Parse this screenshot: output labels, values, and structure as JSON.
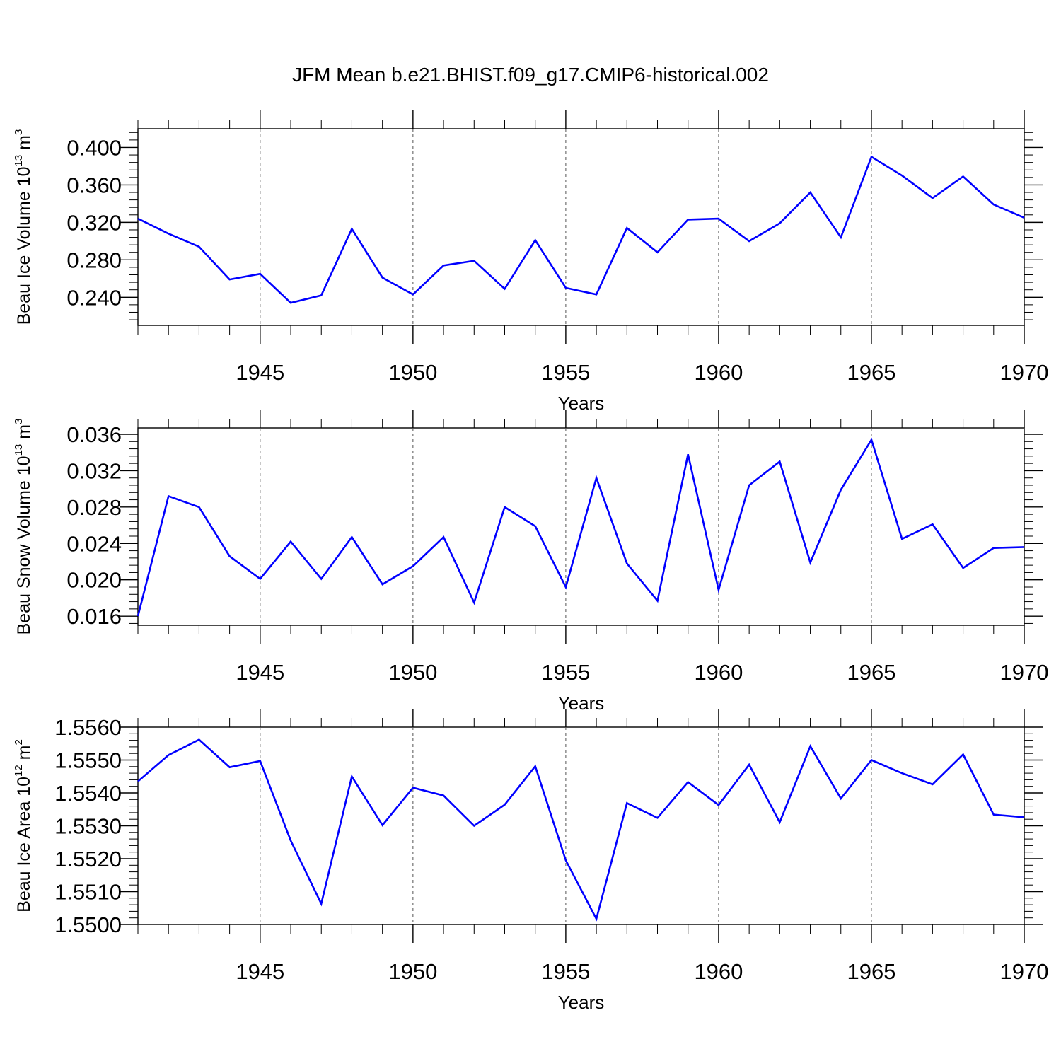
{
  "title": "JFM Mean b.e21.BHIST.f09_g17.CMIP6-historical.002",
  "chart_data": [
    {
      "type": "line",
      "ylabel_parts": [
        "Beau Ice Volume 10",
        "13",
        " m",
        "3"
      ],
      "xlabel": "Years",
      "xlim": [
        1941,
        1970
      ],
      "ylim": [
        0.21,
        0.42
      ],
      "yticks": [
        "0.240",
        "0.280",
        "0.320",
        "0.360",
        "0.400"
      ],
      "xticks": [
        "1945",
        "1950",
        "1955",
        "1960",
        "1965",
        "1970"
      ],
      "line_color": "#0000ff",
      "series": [
        {
          "name": "Beau Ice Volume",
          "x": [
            1941,
            1942,
            1943,
            1944,
            1945,
            1946,
            1947,
            1948,
            1949,
            1950,
            1951,
            1952,
            1953,
            1954,
            1955,
            1956,
            1957,
            1958,
            1959,
            1960,
            1961,
            1962,
            1963,
            1964,
            1965,
            1966,
            1967,
            1968,
            1969,
            1970
          ],
          "values": [
            0.324,
            0.308,
            0.294,
            0.259,
            0.265,
            0.234,
            0.242,
            0.313,
            0.261,
            0.243,
            0.274,
            0.279,
            0.249,
            0.301,
            0.25,
            0.243,
            0.314,
            0.288,
            0.323,
            0.324,
            0.3,
            0.319,
            0.352,
            0.304,
            0.39,
            0.37,
            0.346,
            0.369,
            0.339,
            0.325
          ]
        }
      ]
    },
    {
      "type": "line",
      "ylabel_parts": [
        "Beau Snow Volume 10",
        "13",
        " m",
        "3"
      ],
      "xlabel": "Years",
      "xlim": [
        1941,
        1970
      ],
      "ylim": [
        0.015,
        0.0367
      ],
      "yticks": [
        "0.016",
        "0.020",
        "0.024",
        "0.028",
        "0.032",
        "0.036"
      ],
      "xticks": [
        "1945",
        "1950",
        "1955",
        "1960",
        "1965",
        "1970"
      ],
      "line_color": "#0000ff",
      "series": [
        {
          "name": "Beau Snow Volume",
          "x": [
            1941,
            1942,
            1943,
            1944,
            1945,
            1946,
            1947,
            1948,
            1949,
            1950,
            1951,
            1952,
            1953,
            1954,
            1955,
            1956,
            1957,
            1958,
            1959,
            1960,
            1961,
            1962,
            1963,
            1964,
            1965,
            1966,
            1967,
            1968,
            1969,
            1970
          ],
          "values": [
            0.016,
            0.0292,
            0.028,
            0.0226,
            0.0201,
            0.0242,
            0.0201,
            0.0247,
            0.0195,
            0.0215,
            0.0247,
            0.0175,
            0.028,
            0.0259,
            0.0192,
            0.0312,
            0.0218,
            0.0177,
            0.0338,
            0.0189,
            0.0304,
            0.033,
            0.0219,
            0.0299,
            0.0354,
            0.0245,
            0.0261,
            0.0213,
            0.0235,
            0.0236
          ]
        }
      ]
    },
    {
      "type": "line",
      "ylabel_parts": [
        "Beau Ice Area 10",
        "12",
        " m",
        "2"
      ],
      "xlabel": "Years",
      "xlim": [
        1941,
        1970
      ],
      "ylim": [
        1.55,
        1.556
      ],
      "yticks": [
        "1.5500",
        "1.5510",
        "1.5520",
        "1.5530",
        "1.5540",
        "1.5550",
        "1.5560"
      ],
      "xticks": [
        "1945",
        "1950",
        "1955",
        "1960",
        "1965",
        "1970"
      ],
      "line_color": "#0000ff",
      "series": [
        {
          "name": "Beau Ice Area",
          "x": [
            1941,
            1942,
            1943,
            1944,
            1945,
            1946,
            1947,
            1948,
            1949,
            1950,
            1951,
            1952,
            1953,
            1954,
            1955,
            1956,
            1957,
            1958,
            1959,
            1960,
            1961,
            1962,
            1963,
            1964,
            1965,
            1966,
            1967,
            1968,
            1969,
            1970
          ],
          "values": [
            1.55435,
            1.55515,
            1.55562,
            1.55478,
            1.55497,
            1.55255,
            1.55063,
            1.5545,
            1.55302,
            1.55416,
            1.55392,
            1.553,
            1.55364,
            1.55481,
            1.55195,
            1.55017,
            1.55369,
            1.55324,
            1.55433,
            1.55363,
            1.55486,
            1.55311,
            1.55542,
            1.55383,
            1.555,
            1.5546,
            1.55426,
            1.55517,
            1.55334,
            1.55326
          ]
        }
      ]
    }
  ]
}
